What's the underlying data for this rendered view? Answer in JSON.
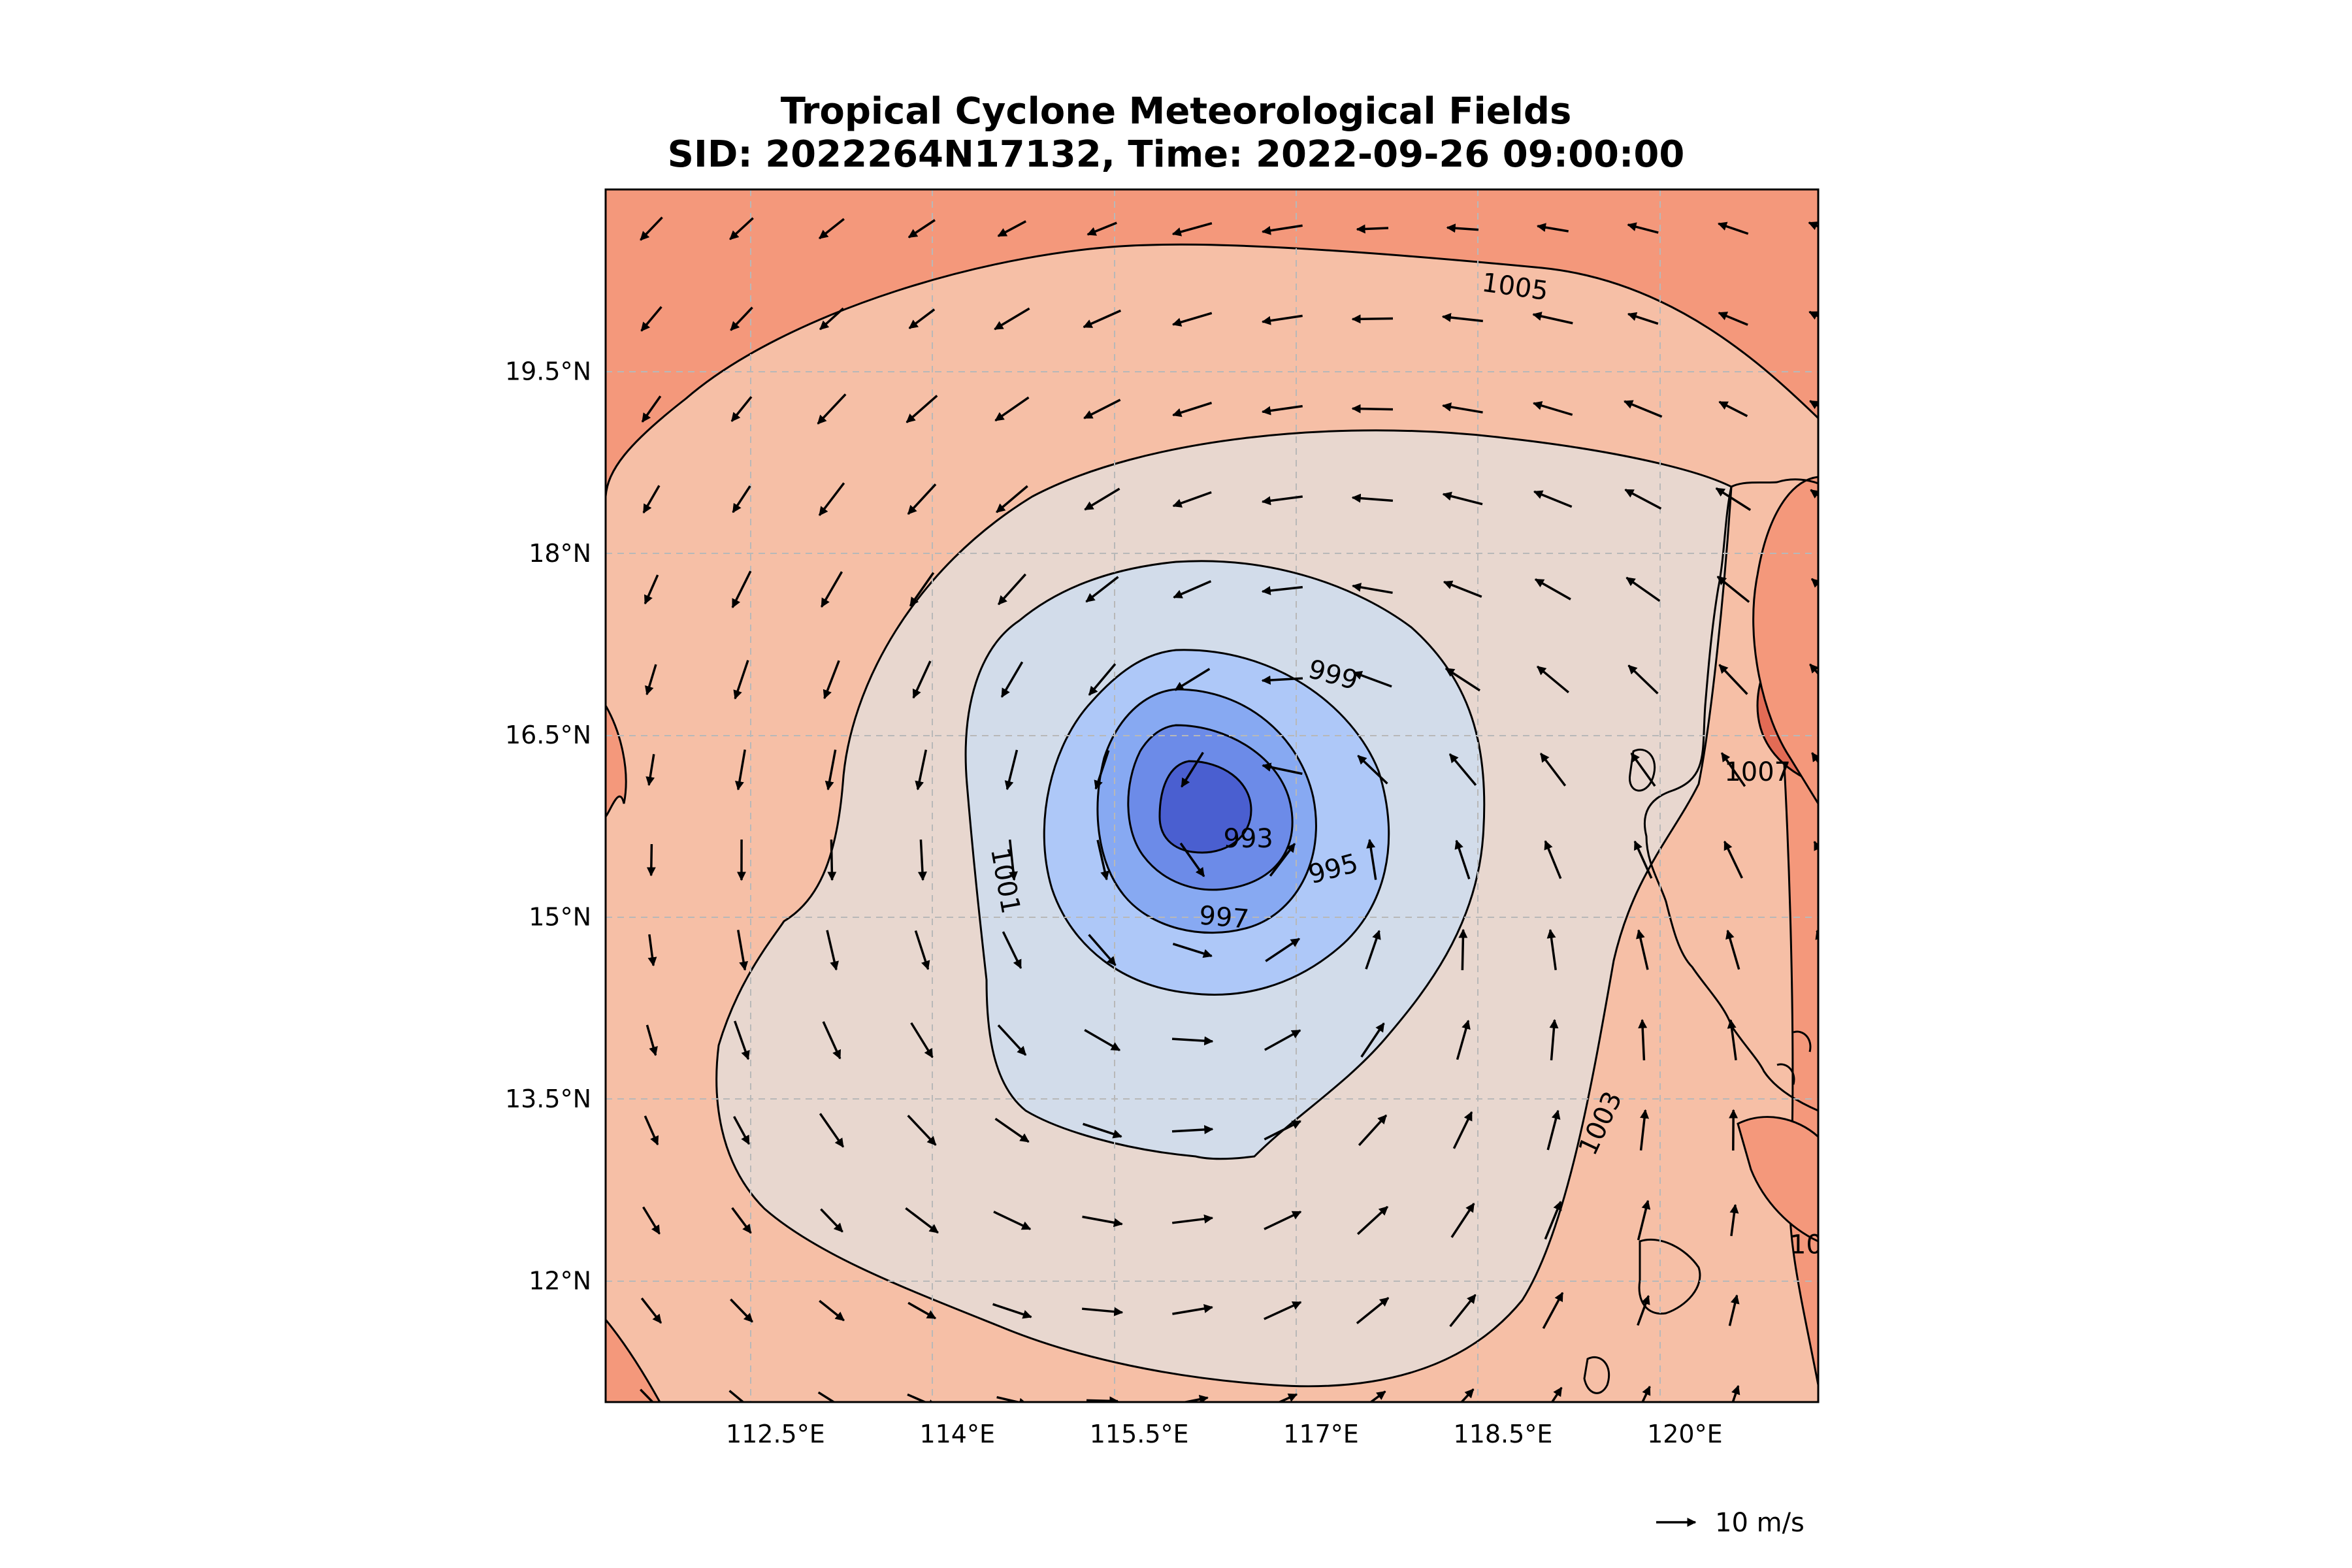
{
  "title": {
    "line1": "Tropical Cyclone Meteorological Fields",
    "line2": "SID: 2022264N17132, Time: 2022-09-26 09:00:00"
  },
  "chart_data": {
    "type": "contour_map",
    "title": "Tropical Cyclone Meteorological Fields",
    "subtitle": "SID: 2022264N17132, Time: 2022-09-26 09:00:00",
    "xlim": [
      111.1,
      121.1
    ],
    "ylim": [
      11.0,
      21.0
    ],
    "xticks": [
      {
        "value": 112.5,
        "label": "112.5°E"
      },
      {
        "value": 114.0,
        "label": "114°E"
      },
      {
        "value": 115.5,
        "label": "115.5°E"
      },
      {
        "value": 117.0,
        "label": "117°E"
      },
      {
        "value": 118.5,
        "label": "118.5°E"
      },
      {
        "value": 120.0,
        "label": "120°E"
      }
    ],
    "yticks": [
      {
        "value": 12.0,
        "label": "12°N"
      },
      {
        "value": 13.5,
        "label": "13.5°N"
      },
      {
        "value": 15.0,
        "label": "15°N"
      },
      {
        "value": 16.5,
        "label": "16.5°N"
      },
      {
        "value": 18.0,
        "label": "18°N"
      },
      {
        "value": 19.5,
        "label": "19.5°N"
      }
    ],
    "grid": true,
    "center": {
      "lon": 116.5,
      "lat": 15.9
    },
    "contour_labels": [
      {
        "text": "1005",
        "lon": 118.6,
        "lat": 20.2,
        "rot": 8
      },
      {
        "text": "999",
        "lon": 117.1,
        "lat": 17.0,
        "rot": 15
      },
      {
        "text": "993",
        "lon": 116.4,
        "lat": 15.65,
        "rot": 0
      },
      {
        "text": "995",
        "lon": 117.1,
        "lat": 15.4,
        "rot": -15
      },
      {
        "text": "997",
        "lon": 116.2,
        "lat": 15.0,
        "rot": 5
      },
      {
        "text": "1001",
        "lon": 114.4,
        "lat": 15.3,
        "rot": 80
      },
      {
        "text": "1003",
        "lon": 119.3,
        "lat": 13.3,
        "rot": -65
      },
      {
        "text": "1007",
        "lon": 120.6,
        "lat": 16.2,
        "rot": 0
      },
      {
        "text": "10",
        "lon": 121.0,
        "lat": 12.3,
        "rot": 0
      }
    ],
    "wind_key": {
      "label": "10 m/s",
      "speed": 10
    }
  }
}
